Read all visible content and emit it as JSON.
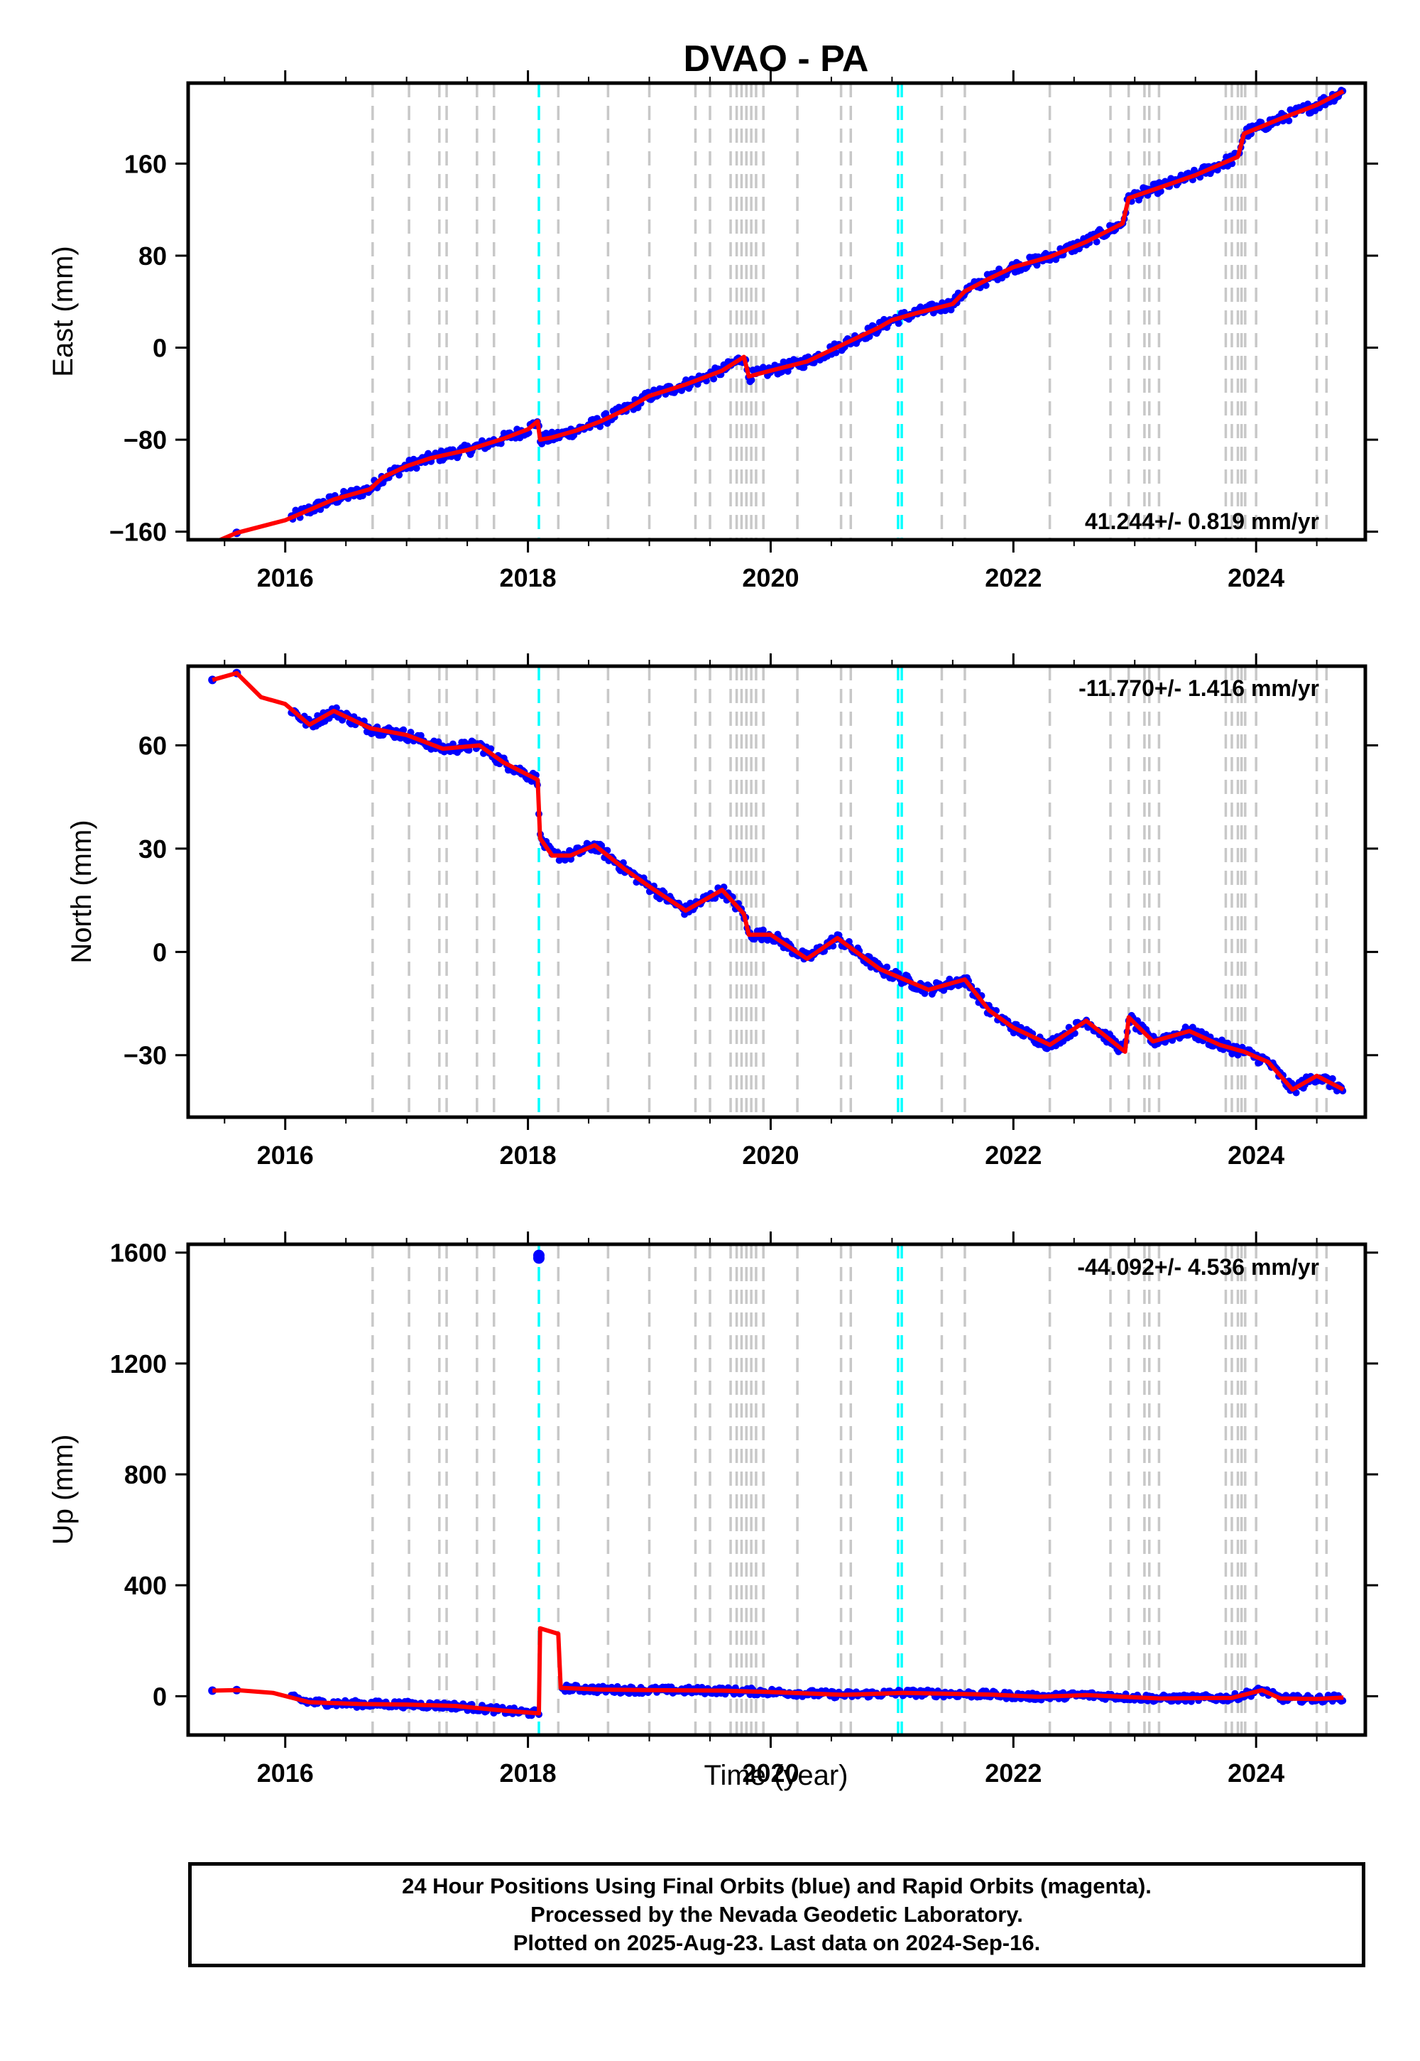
{
  "chart_data": {
    "type": "line",
    "title": "DVAO - PA",
    "xlabel": "Time (year)",
    "xlim": [
      2015.2,
      2024.9
    ],
    "xticks": [
      2016,
      2018,
      2020,
      2022,
      2024
    ],
    "colors": {
      "points": "#0000ff",
      "model": "#ff0000",
      "step_equipment": "#00ffff",
      "step_eq": "#c8c8c8"
    },
    "equipment_changes": [
      2018.09,
      2021.05,
      2021.08
    ],
    "earthquake_steps": [
      2016.72,
      2017.02,
      2017.27,
      2017.33,
      2017.58,
      2017.72,
      2018.25,
      2018.66,
      2019.0,
      2019.38,
      2019.5,
      2019.67,
      2019.72,
      2019.76,
      2019.8,
      2019.84,
      2019.88,
      2019.94,
      2020.22,
      2020.58,
      2020.66,
      2021.41,
      2021.6,
      2022.3,
      2022.8,
      2022.95,
      2023.08,
      2023.12,
      2023.2,
      2023.75,
      2023.8,
      2023.85,
      2023.88,
      2023.91,
      2024.0,
      2024.5,
      2024.58
    ],
    "panels": [
      {
        "ylabel": "East (mm)",
        "ylim": [
          -167,
          230
        ],
        "yticks": [
          160,
          80,
          0,
          -80,
          -160
        ],
        "ytick_labels": [
          "160",
          "80",
          "0",
          "−80",
          "−160"
        ],
        "rate": "41.244+/- 0.819 mm/yr",
        "series": [
          {
            "x": [
              2015.4,
              2015.6,
              2016.0,
              2016.2,
              2016.4,
              2016.7,
              2016.8,
              2017.0,
              2017.2,
              2017.5,
              2017.8,
              2018.0,
              2018.08,
              2018.1,
              2018.2,
              2018.4,
              2018.6,
              2018.8,
              2019.0,
              2019.3,
              2019.6,
              2019.78,
              2019.82,
              2020.0,
              2020.3,
              2020.6,
              2020.9,
              2021.0,
              2021.2,
              2021.5,
              2021.6,
              2021.8,
              2022.0,
              2022.3,
              2022.6,
              2022.9,
              2022.95,
              2023.2,
              2023.5,
              2023.85,
              2023.9,
              2024.2,
              2024.5,
              2024.72
            ],
            "values": [
              -170,
              -161,
              -150,
              -141,
              -132,
              -123,
              -113,
              -103,
              -96,
              -89,
              -79,
              -71,
              -64,
              -80,
              -78,
              -72,
              -64,
              -54,
              -42,
              -32,
              -20,
              -8,
              -25,
              -20,
              -12,
              3,
              18,
              24,
              30,
              38,
              49,
              60,
              70,
              79,
              92,
              108,
              130,
              139,
              150,
              166,
              186,
              199,
              211,
              223
            ]
          }
        ]
      },
      {
        "ylabel": "North (mm)",
        "ylim": [
          -48,
          83
        ],
        "yticks": [
          60,
          30,
          0,
          -30
        ],
        "ytick_labels": [
          "60",
          "30",
          "0",
          "−30"
        ],
        "rate": "-11.770+/- 1.416 mm/yr",
        "series": [
          {
            "x": [
              2015.4,
              2015.6,
              2015.8,
              2016.0,
              2016.2,
              2016.4,
              2016.7,
              2017.0,
              2017.3,
              2017.6,
              2017.8,
              2018.08,
              2018.1,
              2018.2,
              2018.35,
              2018.55,
              2018.8,
              2019.0,
              2019.3,
              2019.6,
              2019.78,
              2019.82,
              2020.0,
              2020.3,
              2020.55,
              2020.9,
              2021.1,
              2021.3,
              2021.6,
              2021.8,
              2022.0,
              2022.3,
              2022.6,
              2022.92,
              2022.95,
              2023.15,
              2023.45,
              2023.7,
              2023.9,
              2024.1,
              2024.3,
              2024.5,
              2024.72
            ],
            "values": [
              79,
              81,
              74,
              72,
              66,
              70,
              65,
              63,
              59,
              60,
              55,
              50,
              33,
              28,
              28,
              31,
              24,
              19,
              12,
              18,
              11,
              5,
              5,
              -2,
              4,
              -5,
              -8,
              -11,
              -8,
              -17,
              -22,
              -27,
              -20,
              -29,
              -19,
              -26,
              -23,
              -27,
              -29,
              -32,
              -40,
              -36,
              -40
            ]
          }
        ]
      },
      {
        "ylabel": "Up (mm)",
        "ylim": [
          -140,
          1630
        ],
        "yticks": [
          1600,
          1200,
          800,
          400,
          0
        ],
        "ytick_labels": [
          "1600",
          "1200",
          "800",
          "400",
          "0"
        ],
        "rate": "-44.092+/- 4.536 mm/yr",
        "series": [
          {
            "x": [
              2015.4,
              2015.6,
              2015.9,
              2016.2,
              2016.6,
              2017.0,
              2017.4,
              2017.8,
              2018.09,
              2018.1,
              2018.25,
              2018.27,
              2018.6,
              2019.0,
              2019.6,
              2020.0,
              2020.6,
              2021.1,
              2021.8,
              2022.2,
              2022.6,
              2023.2,
              2023.8,
              2024.05,
              2024.2,
              2024.5,
              2024.72
            ],
            "values": [
              20,
              22,
              12,
              -22,
              -28,
              -30,
              -35,
              -52,
              -62,
              245,
              225,
              30,
              24,
              22,
              20,
              15,
              5,
              12,
              6,
              -2,
              4,
              -8,
              -6,
              22,
              -8,
              -10,
              -5
            ]
          }
        ]
      }
    ]
  },
  "footer": {
    "line1": "24 Hour Positions Using Final Orbits (blue) and Rapid Orbits (magenta).",
    "line2": "Processed by the Nevada Geodetic Laboratory.",
    "line3": "Plotted on 2025-Aug-23. Last data on 2024-Sep-16."
  }
}
